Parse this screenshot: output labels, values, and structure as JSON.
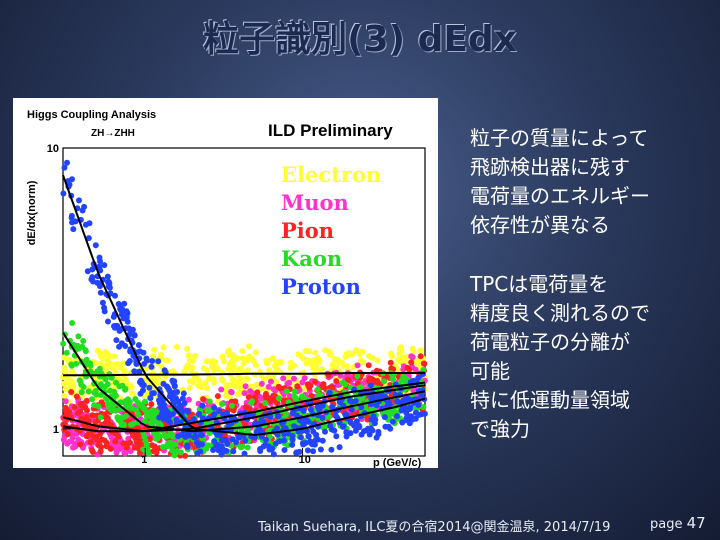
{
  "slide": {
    "title": "粒子識別(3) dEdx",
    "side_paragraphs": [
      [
        "粒子の質量によって",
        "飛跡検出器に残す",
        "電荷量のエネルギー",
        "依存性が異なる"
      ],
      [
        "TPCは電荷量を",
        "精度良く測れるので",
        "荷電粒子の分離が",
        "可能",
        "特に低運動量領域",
        "で強力"
      ]
    ],
    "footer": "Taikan Suehara, ILC夏の合宿2014@関金温泉, 2014/7/19",
    "page_label": "page",
    "page_number": "47"
  },
  "chart_data": {
    "type": "scatter",
    "header": "Higgs Coupling Analysis",
    "process": "ZH→ZHH",
    "title": "ILD Preliminary",
    "xlabel": "p (GeV/c)",
    "ylabel": "dE/dx(norm)",
    "xscale": "log",
    "yscale": "log",
    "xlim": [
      0.3,
      60
    ],
    "ylim": [
      0.8,
      10
    ],
    "xticks": [
      {
        "value": 1,
        "label": "1"
      },
      {
        "value": 10,
        "label": "10"
      }
    ],
    "yticks": [
      {
        "value": 1,
        "label": "1"
      },
      {
        "value": 10,
        "label": "10"
      }
    ],
    "legend_position": "top-right",
    "series": [
      {
        "name": "Electron",
        "color": "#ffff33",
        "x": [
          0.3,
          0.5,
          1,
          2,
          5,
          10,
          20,
          40,
          60
        ],
        "y": [
          1.55,
          1.55,
          1.56,
          1.56,
          1.57,
          1.57,
          1.58,
          1.58,
          1.58
        ]
      },
      {
        "name": "Muon",
        "color": "#ff33cc",
        "x": [
          0.3,
          0.5,
          1,
          2,
          5,
          10,
          20,
          40,
          60
        ],
        "y": [
          1.02,
          0.98,
          0.98,
          1.05,
          1.15,
          1.25,
          1.35,
          1.42,
          1.46
        ]
      },
      {
        "name": "Pion",
        "color": "#ff2222",
        "x": [
          0.3,
          0.5,
          1,
          2,
          5,
          10,
          20,
          40,
          60
        ],
        "y": [
          1.1,
          1.02,
          0.98,
          1.0,
          1.1,
          1.2,
          1.3,
          1.38,
          1.43
        ]
      },
      {
        "name": "Kaon",
        "color": "#22dd22",
        "x": [
          0.3,
          0.5,
          1,
          2,
          5,
          10,
          20,
          40,
          60
        ],
        "y": [
          2.2,
          1.4,
          1.02,
          0.98,
          1.02,
          1.1,
          1.2,
          1.3,
          1.36
        ]
      },
      {
        "name": "Proton",
        "color": "#2244ff",
        "x": [
          0.3,
          0.5,
          1,
          2,
          5,
          10,
          20,
          40,
          60
        ],
        "y": [
          8.0,
          3.6,
          1.55,
          1.0,
          0.95,
          1.0,
          1.1,
          1.2,
          1.28
        ]
      }
    ]
  }
}
